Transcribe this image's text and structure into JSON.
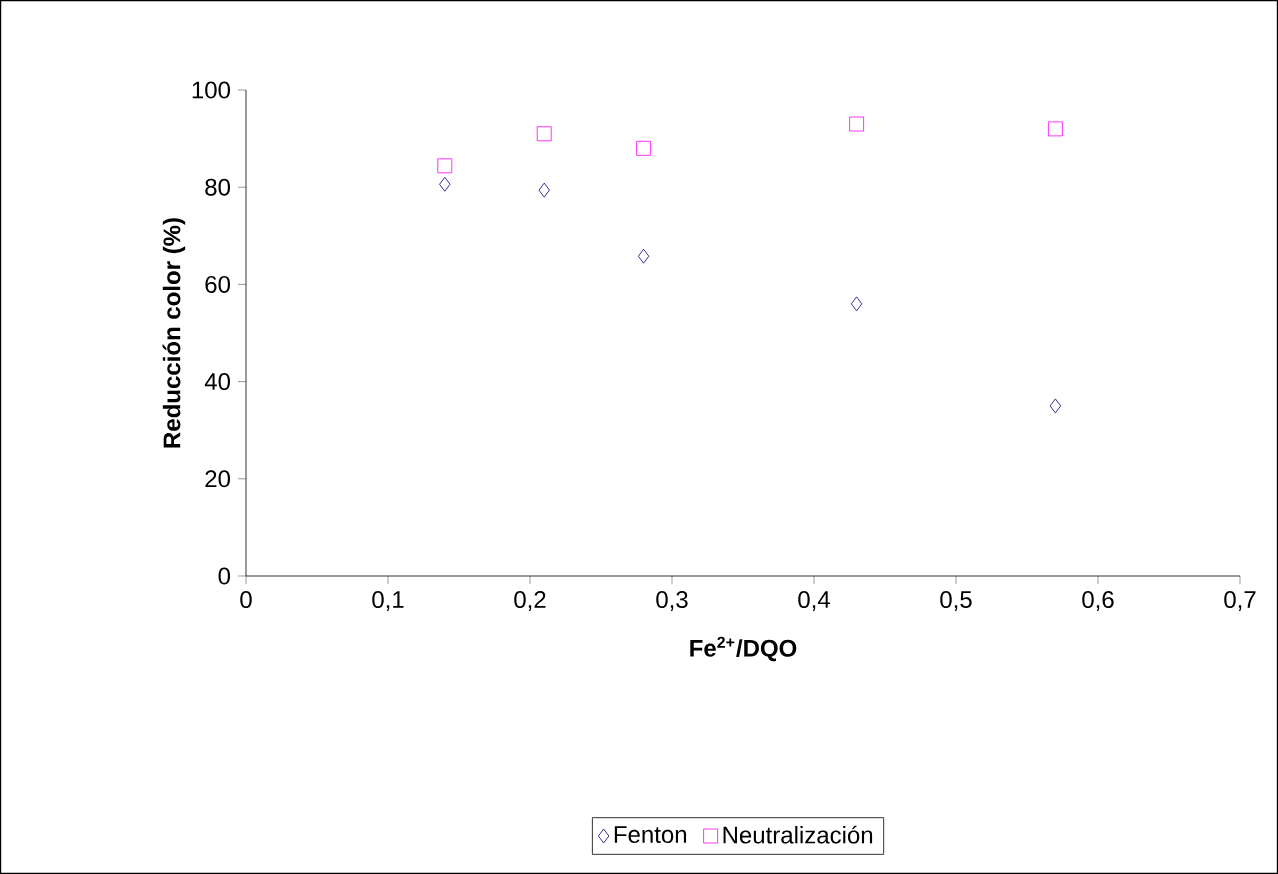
{
  "chart_data": {
    "type": "scatter",
    "xlabel": "**Fe$^{2+}$/DQO**",
    "ylabel": "Reducción color (%)",
    "xlim": [
      0,
      0.7
    ],
    "ylim": [
      0,
      100
    ],
    "xticks": [
      0,
      {
        "value": 0.1,
        "label": "0,1"
      },
      {
        "value": 0.2,
        "label": "0,2"
      },
      {
        "value": 0.3,
        "label": "0,3"
      },
      {
        "value": 0.4,
        "label": "0,4"
      },
      {
        "value": 0.5,
        "label": "0,5"
      },
      {
        "value": 0.6,
        "label": "0,6"
      },
      {
        "value": 0.7,
        "label": "0,7"
      }
    ],
    "yticks": [
      0,
      20,
      40,
      60,
      80,
      100
    ],
    "x": [
      0.14,
      0.21,
      0.28,
      0.43,
      0.57
    ],
    "series": [
      {
        "name": "Fenton",
        "color": "#000080",
        "marker": "diamond",
        "values": [
          80.6,
          79.4,
          65.8,
          56,
          35
        ]
      },
      {
        "name": "Neutralización",
        "color": "#ff00ff",
        "marker": "square",
        "values": [
          84.4,
          91,
          88,
          93,
          92
        ]
      }
    ],
    "grid": false,
    "legend": "bottom"
  }
}
